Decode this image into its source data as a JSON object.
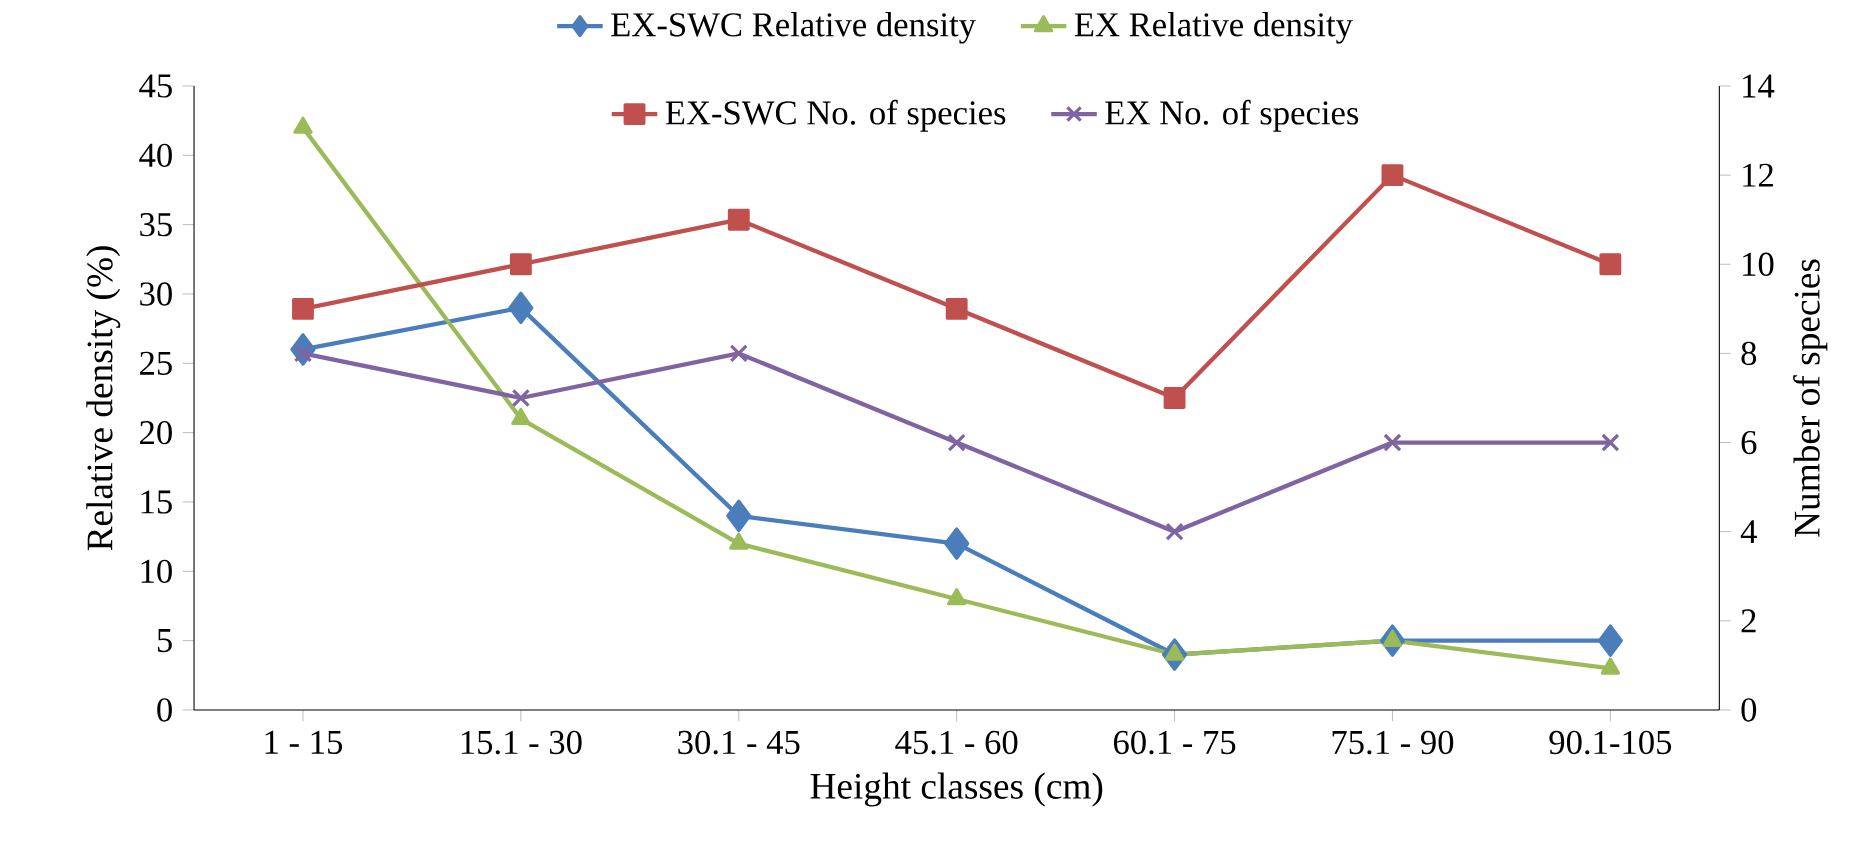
{
  "chart_data": {
    "type": "line",
    "xlabel": "Height classes (cm)",
    "ylabel": "Relative density (%)",
    "y2label": "Number of species",
    "categories": [
      "1 - 15",
      "15.1 - 30",
      "30.1 - 45",
      "45.1 - 60",
      "60.1 - 75",
      "75.1 - 90",
      "90.1-105"
    ],
    "ylim": [
      0,
      45
    ],
    "yticks": [
      0,
      5,
      10,
      15,
      20,
      25,
      30,
      35,
      40,
      45
    ],
    "y2lim": [
      0,
      14
    ],
    "y2ticks": [
      0,
      2,
      4,
      6,
      8,
      10,
      12,
      14
    ],
    "grid": false,
    "legend": "top",
    "series": [
      {
        "name": "EX-SWC Relative density",
        "color": "#4a7ebb",
        "marker": "diamond",
        "values": [
          26,
          29,
          14,
          12,
          4,
          5,
          5
        ]
      },
      {
        "name": "EX Relative density",
        "color": "#9bbb59",
        "marker": "triangle",
        "values": [
          42,
          21,
          12,
          8,
          4,
          5,
          3
        ]
      },
      {
        "name": "EX-SWC No. of species",
        "color": "#c0504d",
        "marker": "square",
        "axis": "y2",
        "values": [
          9,
          10,
          11,
          9,
          7,
          12,
          10
        ]
      },
      {
        "name": "EX No. of species",
        "color": "#8064a2",
        "marker": "cross",
        "axis": "y2",
        "values": [
          8,
          7,
          8,
          6,
          4,
          6,
          6
        ]
      }
    ]
  }
}
